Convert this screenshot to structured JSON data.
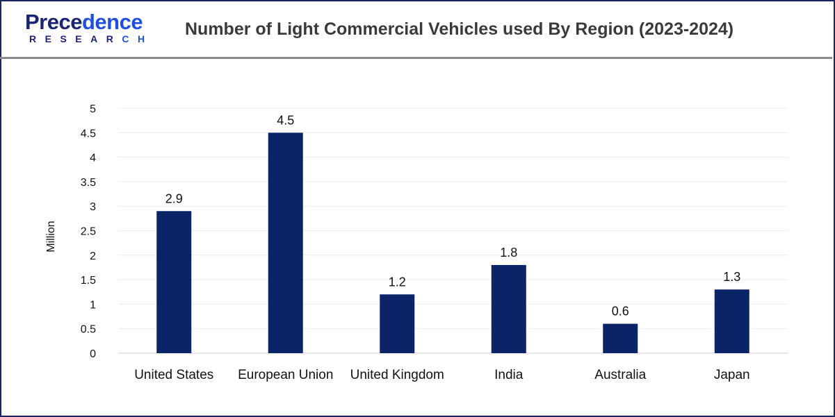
{
  "header": {
    "logo_main": "Precedence",
    "logo_sub": "RESEARCH",
    "title": "Number of Light Commercial Vehicles used By Region (2023-2024)"
  },
  "chart_data": {
    "type": "bar",
    "title": "Number of Light Commercial Vehicles used By Region (2023-2024)",
    "xlabel": "",
    "ylabel": "Million",
    "categories": [
      "United States",
      "European Union",
      "United Kingdom",
      "India",
      "Australia",
      "Japan"
    ],
    "values": [
      2.9,
      4.5,
      1.2,
      1.8,
      0.6,
      1.3
    ],
    "data_labels": [
      "2.9",
      "4.5",
      "1.2",
      "1.8",
      "0.6",
      "1.3"
    ],
    "ylim": [
      0,
      5
    ],
    "yticks": [
      "0",
      "0.5",
      "1",
      "1.5",
      "2",
      "2.5",
      "3",
      "3.5",
      "4",
      "4.5",
      "5"
    ],
    "grid": true,
    "bar_color": "#0b2468"
  }
}
